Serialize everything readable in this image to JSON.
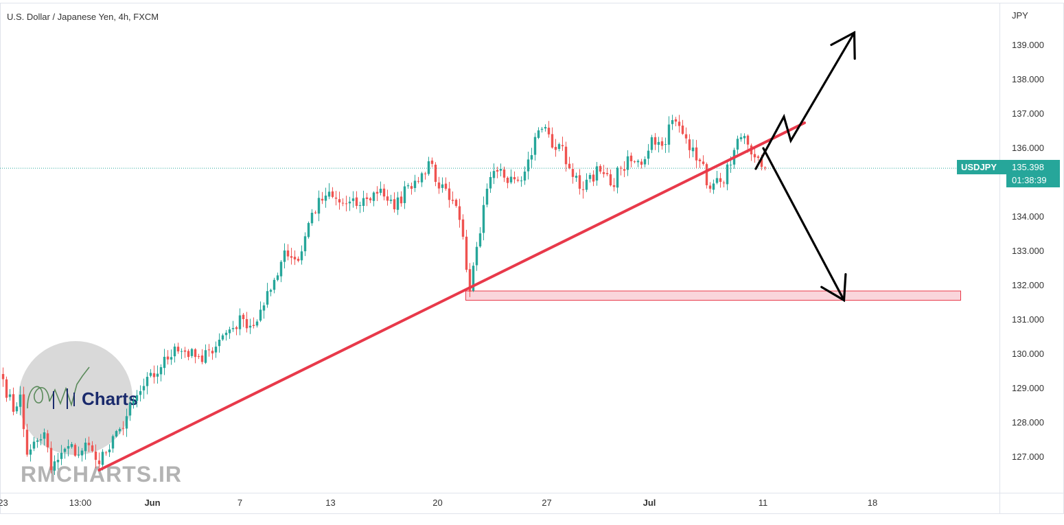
{
  "header": {
    "title": "U.S. Dollar / Japanese Yen, 4h, FXCM"
  },
  "price_tag": {
    "symbol": "USDJPY",
    "price": "135.398",
    "countdown": "01:38:39",
    "color": "#26a69a"
  },
  "watermark": {
    "logo_text": "Charts",
    "site": "RMCHARTS.IR"
  },
  "colors": {
    "up": "#26a69a",
    "down": "#ef5350",
    "trendline": "#e8394a",
    "zone_fill": "#f8c7cf",
    "zone_border": "#e8394a",
    "arrows": "#000000"
  },
  "chart_data": {
    "type": "candlestick",
    "title": "U.S. Dollar / Japanese Yen, 4h, FXCM",
    "symbol": "USDJPY",
    "currency_label": "JPY",
    "last_price": 135.398,
    "ylim": [
      126.0,
      139.8
    ],
    "y_ticks": [
      "127.000",
      "128.000",
      "129.000",
      "130.000",
      "131.000",
      "132.000",
      "133.000",
      "134.000",
      "135.000",
      "136.000",
      "137.000",
      "138.000",
      "139.000"
    ],
    "x_labels": [
      {
        "text": "23",
        "t": 0.0
      },
      {
        "text": "13:00",
        "t": 22.5
      },
      {
        "text": "Jun",
        "t": 43.5,
        "bold": true
      },
      {
        "text": "7",
        "t": 69.0
      },
      {
        "text": "13",
        "t": 95.4
      },
      {
        "text": "20",
        "t": 126.6
      },
      {
        "text": "27",
        "t": 158.4
      },
      {
        "text": "Jul",
        "t": 188.3,
        "bold": true
      },
      {
        "text": "11",
        "t": 221.4
      },
      {
        "text": "18",
        "t": 253.3
      }
    ],
    "close_anchors": [
      [
        0,
        129.25
      ],
      [
        3,
        128.3
      ],
      [
        5,
        128.8
      ],
      [
        7,
        127.05
      ],
      [
        8,
        127.2
      ],
      [
        12,
        127.7
      ],
      [
        14,
        126.6
      ],
      [
        19,
        127.3
      ],
      [
        22,
        127.05
      ],
      [
        24,
        127.4
      ],
      [
        27,
        126.9
      ],
      [
        31,
        127.2
      ],
      [
        34,
        127.8
      ],
      [
        40,
        128.9
      ],
      [
        46,
        129.6
      ],
      [
        50,
        130.2
      ],
      [
        53,
        130.05
      ],
      [
        58,
        129.75
      ],
      [
        60,
        130.1
      ],
      [
        63,
        130.4
      ],
      [
        66,
        130.7
      ],
      [
        70,
        131.0
      ],
      [
        73,
        130.8
      ],
      [
        76,
        131.4
      ],
      [
        78,
        131.85
      ],
      [
        82,
        133.0
      ],
      [
        86,
        132.7
      ],
      [
        90,
        134.1
      ],
      [
        94,
        134.6
      ],
      [
        98,
        134.4
      ],
      [
        103,
        134.3
      ],
      [
        106,
        134.5
      ],
      [
        110,
        134.8
      ],
      [
        114,
        134.2
      ],
      [
        118,
        134.9
      ],
      [
        122,
        135.25
      ],
      [
        124,
        135.6
      ],
      [
        126,
        135.0
      ],
      [
        129,
        134.8
      ],
      [
        132,
        134.3
      ],
      [
        134,
        133.4
      ],
      [
        136,
        131.8
      ],
      [
        139,
        133.5
      ],
      [
        141,
        134.8
      ],
      [
        144,
        135.3
      ],
      [
        148,
        135.15
      ],
      [
        152,
        135.3
      ],
      [
        156,
        136.5
      ],
      [
        158,
        136.6
      ],
      [
        160,
        136.0
      ],
      [
        162,
        136.1
      ],
      [
        165,
        135.4
      ],
      [
        168,
        134.8
      ],
      [
        171,
        135.2
      ],
      [
        174,
        135.3
      ],
      [
        177,
        134.9
      ],
      [
        180,
        135.4
      ],
      [
        183,
        135.6
      ],
      [
        186,
        135.5
      ],
      [
        189,
        136.3
      ],
      [
        192,
        136.05
      ],
      [
        195,
        136.8
      ],
      [
        198,
        136.4
      ],
      [
        201,
        136.0
      ],
      [
        203,
        135.6
      ],
      [
        206,
        134.8
      ],
      [
        209,
        135.0
      ],
      [
        212,
        135.5
      ],
      [
        215,
        136.3
      ],
      [
        218,
        135.8
      ],
      [
        220,
        135.7
      ],
      [
        222,
        135.398
      ]
    ],
    "candle_count": 223,
    "drawings": {
      "trendline": {
        "from": [
          28,
          126.6
        ],
        "to": [
          233.5,
          136.72
        ]
      },
      "support_zone": {
        "from_t": 134.8,
        "to_t": 279,
        "low": 131.55,
        "high": 131.82
      },
      "arrow_up_path": [
        [
          219.3,
          135.38
        ],
        [
          227.5,
          136.9
        ],
        [
          229.5,
          136.2
        ],
        [
          248,
          139.35
        ]
      ],
      "arrow_down_path": [
        [
          221.5,
          135.98
        ],
        [
          245,
          131.55
        ]
      ]
    }
  }
}
